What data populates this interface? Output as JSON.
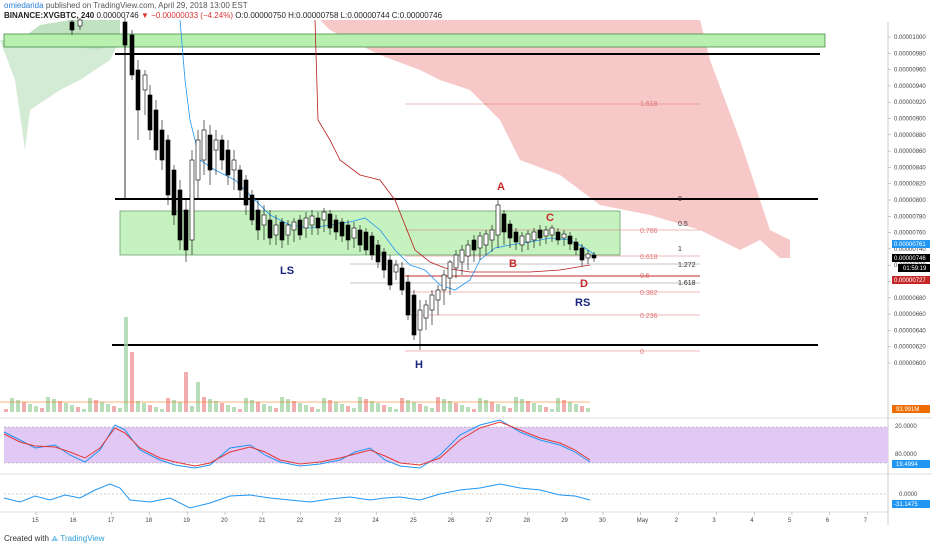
{
  "header": {
    "author": "omiedarida",
    "published": "published on TradingView.com, April 29, 2018 13:00 EST",
    "symbol_line": "BINANCE:XVGBTC, 240",
    "last": "0.00000746",
    "change": "−0.00000033 (−4.24%)",
    "ohlc": "O:0.00000750 H:0.00000758 L:0.00000744 C:0.00000746"
  },
  "price_axis": {
    "ticks": [
      "0.00001000",
      "0.00000980",
      "0.00000960",
      "0.00000940",
      "0.00000920",
      "0.00000900",
      "0.00000880",
      "0.00000860",
      "0.00000840",
      "0.00000820",
      "0.00000800",
      "0.00000780",
      "0.00000760",
      "0.00000740",
      "0.00000720",
      "0.00000700",
      "0.00000680",
      "0.00000660",
      "0.00000640",
      "0.00000620",
      "0.00000600"
    ],
    "tags": [
      {
        "label": "0.00000761",
        "color": "#2196f3"
      },
      {
        "label": "0.00000746",
        "color": "#000000"
      },
      {
        "label": "01:59:19",
        "color": "#000000"
      },
      {
        "label": "0.00000727",
        "color": "#c62828"
      },
      {
        "label": "93.991M",
        "color": "#ef6c00"
      }
    ]
  },
  "stoch_axis": {
    "ticks": [
      "80.0000",
      "20.0000"
    ],
    "tag": "19.4994"
  },
  "osc_axis": {
    "ticks": [
      "0.0000"
    ],
    "tag": "-31.1475"
  },
  "time_axis": [
    "15",
    "16",
    "17",
    "18",
    "19",
    "20",
    "21",
    "22",
    "23",
    "24",
    "25",
    "26",
    "27",
    "28",
    "29",
    "30",
    "May",
    "2",
    "3",
    "4",
    "5",
    "6",
    "7"
  ],
  "fib_upper": [
    "1.618",
    "0.786",
    "0.618",
    "0.5",
    "0.382",
    "0.236",
    "0"
  ],
  "fib_right": [
    "0",
    "0.5",
    "1",
    "1.272",
    "1.618"
  ],
  "pattern_labels": {
    "ls": "LS",
    "h": "H",
    "rs": "RS",
    "a": "A",
    "b": "B",
    "c": "C",
    "d": "D"
  },
  "footer": {
    "created": "Created with",
    "brand": "TradingView"
  },
  "colors": {
    "bull": "#ffffff",
    "bear": "#000000",
    "cloud_green": "#a5d6a7",
    "cloud_red": "#ef9a9a",
    "zone": "#b9f0b0",
    "stoch_bg": "#e1c8f5",
    "ema": "#2196f3",
    "kijun": "#b71c1c",
    "fib": "#e57373"
  }
}
